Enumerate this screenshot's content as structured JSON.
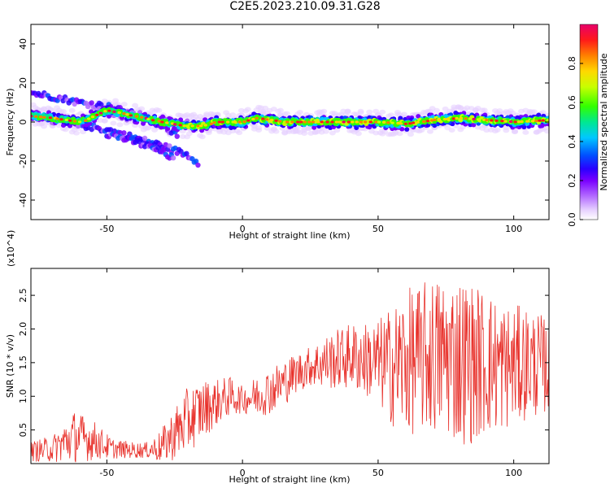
{
  "title": "C2E5.2023.210.09.31.G28",
  "chart_data": [
    {
      "type": "heatmap",
      "title": "C2E5.2023.210.09.31.G28",
      "xlabel": "Height of straight line (km)",
      "ylabel": "Frequency (Hz)",
      "xlim": [
        -78,
        113
      ],
      "ylim": [
        -50,
        50
      ],
      "x_ticks": [
        -50,
        0,
        50,
        100
      ],
      "y_ticks": [
        -40,
        -20,
        0,
        20,
        40
      ],
      "colorbar": {
        "label": "Normalized spectral amplitude",
        "range": [
          0.0,
          1.0
        ],
        "ticks": [
          0.0,
          0.2,
          0.4,
          0.6,
          0.8
        ]
      },
      "ridge": {
        "x": [
          -78,
          -70,
          -60,
          -50,
          -40,
          -30,
          -22,
          -15,
          -10,
          -5,
          0,
          5,
          10,
          15,
          20,
          30,
          40,
          50,
          60,
          70,
          80,
          90,
          100,
          113
        ],
        "freq": [
          3,
          2,
          0,
          6,
          3,
          0,
          -2,
          -2,
          0,
          0,
          0,
          2,
          1,
          0,
          0,
          0,
          0,
          0,
          -1,
          1,
          2,
          1,
          0,
          1
        ]
      },
      "branches": [
        {
          "x": [
            -78,
            -70,
            -60,
            -50,
            -40,
            -30,
            -24
          ],
          "freq": [
            15,
            13,
            10,
            8,
            4,
            -2,
            -6
          ]
        },
        {
          "x": [
            -78,
            -65,
            -50,
            -40,
            -30,
            -20,
            -16
          ],
          "freq": [
            5,
            0,
            -4,
            -8,
            -12,
            -17,
            -21
          ]
        },
        {
          "x": [
            -50,
            -40,
            -30,
            -25
          ],
          "freq": [
            -6,
            -10,
            -15,
            -19
          ]
        }
      ]
    },
    {
      "type": "line",
      "xlabel": "Height of straight line (km)",
      "ylabel": "SNR (10 * v/v)",
      "y_multiplier": "(x10^4)",
      "xlim": [
        -78,
        113
      ],
      "ylim": [
        0,
        2.9
      ],
      "x_ticks": [
        -50,
        0,
        50,
        100
      ],
      "y_ticks": [
        0.5,
        1.0,
        1.5,
        2.0,
        2.5
      ],
      "series": [
        {
          "color": "#e8312b",
          "envelope_x": [
            -78,
            -70,
            -62,
            -55,
            -48,
            -40,
            -35,
            -30,
            -25,
            -20,
            -15,
            -10,
            -5,
            0,
            5,
            10,
            15,
            20,
            25,
            30,
            35,
            40,
            45,
            50,
            55,
            60,
            65,
            70,
            75,
            80,
            85,
            90,
            95,
            100,
            105,
            113
          ],
          "envelope_mean": [
            0.18,
            0.22,
            0.4,
            0.35,
            0.22,
            0.2,
            0.2,
            0.25,
            0.45,
            0.65,
            0.8,
            0.9,
            1.0,
            0.95,
            1.0,
            1.08,
            1.2,
            1.35,
            1.45,
            1.5,
            1.55,
            1.6,
            1.55,
            1.5,
            1.45,
            1.5,
            1.55,
            1.6,
            1.6,
            1.55,
            1.5,
            1.5,
            1.45,
            1.45,
            1.5,
            1.45
          ],
          "envelope_amp": [
            0.15,
            0.2,
            0.4,
            0.3,
            0.15,
            0.12,
            0.12,
            0.25,
            0.4,
            0.5,
            0.45,
            0.35,
            0.3,
            0.2,
            0.3,
            0.35,
            0.35,
            0.3,
            0.3,
            0.4,
            0.45,
            0.5,
            0.55,
            0.65,
            0.9,
            1.1,
            1.1,
            1.2,
            1.2,
            1.3,
            1.2,
            1.1,
            1.0,
            0.9,
            0.85,
            0.7
          ]
        }
      ]
    }
  ],
  "palette": [
    "#ffffff",
    "#e6d0ff",
    "#b36bff",
    "#7a00ff",
    "#2a00ff",
    "#0050ff",
    "#00c8ff",
    "#00e890",
    "#32ff00",
    "#c8ff00",
    "#ffd800",
    "#ff8000",
    "#ff1a1a",
    "#e8006a"
  ]
}
